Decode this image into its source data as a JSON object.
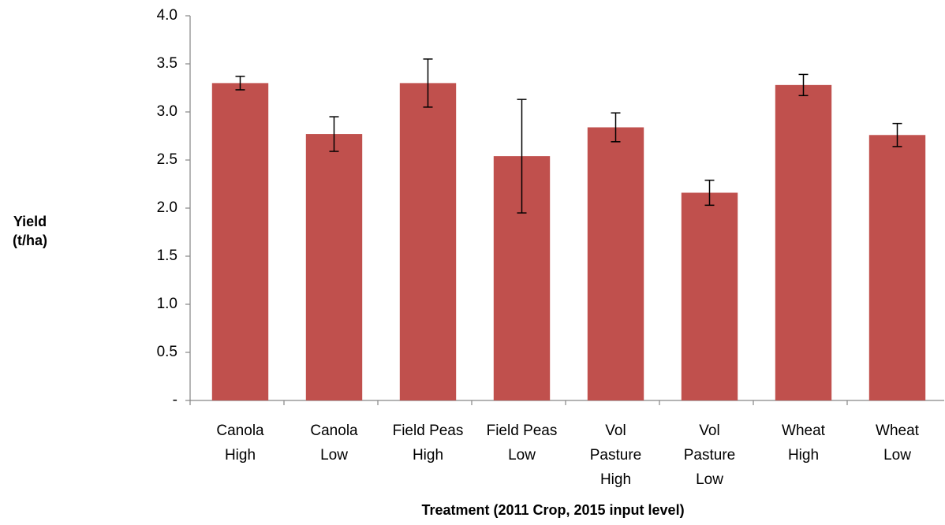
{
  "chart_data": {
    "type": "bar",
    "y_label": [
      "Yield",
      "(t/ha)"
    ],
    "x_label": "Treatment (2011 Crop, 2015 input level)",
    "categories": [
      [
        "Canola",
        "High"
      ],
      [
        "Canola",
        "Low"
      ],
      [
        "Field Peas",
        "High"
      ],
      [
        "Field Peas",
        "Low"
      ],
      [
        "Vol",
        "Pasture",
        "High"
      ],
      [
        "Vol",
        "Pasture",
        "Low"
      ],
      [
        "Wheat",
        "High"
      ],
      [
        "Wheat",
        "Low"
      ]
    ],
    "values": [
      3.3,
      2.77,
      3.3,
      2.54,
      2.84,
      2.16,
      3.28,
      2.76
    ],
    "errors": [
      0.07,
      0.18,
      0.25,
      0.59,
      0.15,
      0.13,
      0.11,
      0.12
    ],
    "color": "#c0504d",
    "ylim": [
      0,
      4
    ],
    "yticks": [
      {
        "value": 0,
        "label": "-"
      },
      0.5,
      {
        "value": 1,
        "label": "1.0"
      },
      1.5,
      {
        "value": 2,
        "label": "2.0"
      },
      2.5,
      {
        "value": 3,
        "label": "3.0"
      },
      3.5,
      {
        "value": 4,
        "label": "4.0"
      }
    ],
    "grid": false
  }
}
